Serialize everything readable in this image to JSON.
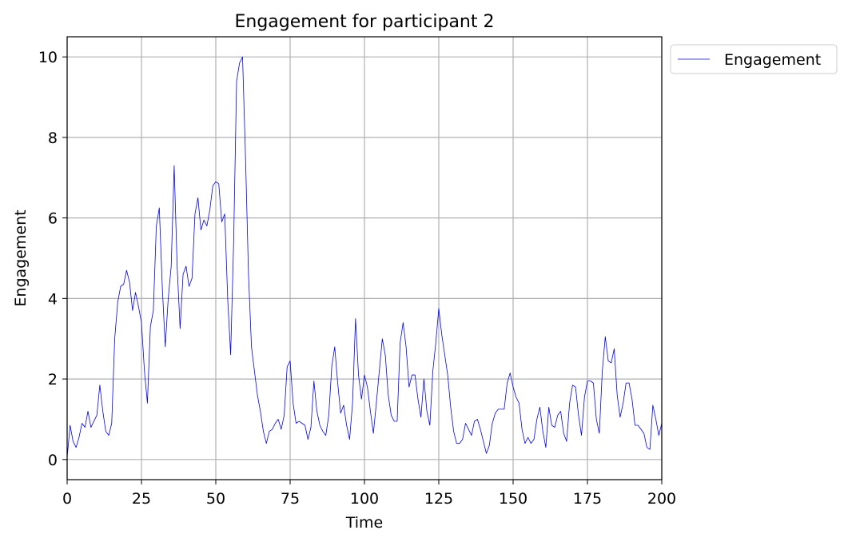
{
  "chart_data": {
    "type": "line",
    "title": "Engagement for participant 2",
    "xlabel": "Time",
    "ylabel": "Engagement",
    "xlim": [
      0,
      200
    ],
    "ylim": [
      -0.5,
      10.5
    ],
    "xticks": [
      0,
      25,
      50,
      75,
      100,
      125,
      150,
      175,
      200
    ],
    "yticks": [
      0,
      2,
      4,
      6,
      8,
      10
    ],
    "grid": true,
    "legend_position": "outside-top-right",
    "series": [
      {
        "name": "Engagement",
        "color": "#0000ff",
        "x": [
          0,
          1,
          2,
          3,
          4,
          5,
          6,
          7,
          8,
          9,
          10,
          11,
          12,
          13,
          14,
          15,
          16,
          17,
          18,
          19,
          20,
          21,
          22,
          23,
          24,
          25,
          26,
          27,
          28,
          29,
          30,
          31,
          32,
          33,
          34,
          35,
          36,
          37,
          38,
          39,
          40,
          41,
          42,
          43,
          44,
          45,
          46,
          47,
          48,
          49,
          50,
          51,
          52,
          53,
          54,
          55,
          56,
          57,
          58,
          59,
          60,
          61,
          62,
          63,
          64,
          65,
          66,
          67,
          68,
          69,
          70,
          71,
          72,
          73,
          74,
          75,
          76,
          77,
          78,
          79,
          80,
          81,
          82,
          83,
          84,
          85,
          86,
          87,
          88,
          89,
          90,
          91,
          92,
          93,
          94,
          95,
          96,
          97,
          98,
          99,
          100,
          101,
          102,
          103,
          104,
          105,
          106,
          107,
          108,
          109,
          110,
          111,
          112,
          113,
          114,
          115,
          116,
          117,
          118,
          119,
          120,
          121,
          122,
          123,
          124,
          125,
          126,
          127,
          128,
          129,
          130,
          131,
          132,
          133,
          134,
          135,
          136,
          137,
          138,
          139,
          140,
          141,
          142,
          143,
          144,
          145,
          146,
          147,
          148,
          149,
          150,
          151,
          152,
          153,
          154,
          155,
          156,
          157,
          158,
          159,
          160,
          161,
          162,
          163,
          164,
          165,
          166,
          167,
          168,
          169,
          170,
          171,
          172,
          173,
          174,
          175,
          176,
          177,
          178,
          179,
          180,
          181,
          182,
          183,
          184,
          185,
          186,
          187,
          188,
          189,
          190,
          191,
          192,
          193,
          194,
          195,
          196,
          197,
          198,
          199,
          200
        ],
        "y": [
          0.05,
          0.85,
          0.45,
          0.3,
          0.55,
          0.9,
          0.8,
          1.2,
          0.8,
          0.95,
          1.1,
          1.85,
          1.2,
          0.7,
          0.6,
          0.9,
          3.0,
          3.9,
          4.3,
          4.35,
          4.7,
          4.4,
          3.7,
          4.15,
          3.8,
          3.4,
          2.2,
          1.4,
          3.3,
          3.7,
          5.8,
          6.25,
          4.3,
          2.8,
          4.0,
          4.8,
          7.3,
          4.8,
          3.25,
          4.6,
          4.8,
          4.3,
          4.5,
          6.1,
          6.5,
          5.7,
          5.95,
          5.8,
          6.2,
          6.8,
          6.9,
          6.85,
          5.9,
          6.1,
          4.0,
          2.6,
          5.4,
          9.4,
          9.85,
          10.0,
          7.5,
          4.6,
          2.8,
          2.2,
          1.6,
          1.2,
          0.7,
          0.4,
          0.7,
          0.75,
          0.9,
          1.0,
          0.75,
          1.1,
          2.3,
          2.45,
          1.4,
          0.9,
          0.95,
          0.9,
          0.85,
          0.5,
          0.8,
          1.95,
          1.2,
          0.85,
          0.7,
          0.6,
          1.1,
          2.3,
          2.8,
          1.9,
          1.15,
          1.35,
          0.85,
          0.5,
          1.4,
          3.5,
          2.1,
          1.5,
          2.1,
          1.8,
          1.2,
          0.65,
          1.4,
          2.2,
          3.0,
          2.6,
          1.6,
          1.1,
          0.95,
          0.95,
          2.9,
          3.4,
          2.8,
          1.8,
          2.1,
          2.1,
          1.5,
          1.05,
          2.0,
          1.2,
          0.85,
          2.2,
          2.9,
          3.75,
          3.1,
          2.6,
          2.1,
          1.3,
          0.7,
          0.4,
          0.4,
          0.5,
          0.9,
          0.75,
          0.6,
          0.95,
          1.0,
          0.75,
          0.45,
          0.15,
          0.35,
          0.9,
          1.15,
          1.25,
          1.25,
          1.25,
          1.9,
          2.15,
          1.8,
          1.55,
          1.4,
          0.75,
          0.4,
          0.55,
          0.4,
          0.5,
          1.0,
          1.3,
          0.7,
          0.3,
          1.3,
          0.85,
          0.8,
          1.1,
          1.2,
          0.65,
          0.45,
          1.4,
          1.85,
          1.8,
          1.1,
          0.6,
          1.55,
          1.95,
          1.95,
          1.9,
          1.0,
          0.65,
          2.2,
          3.05,
          2.45,
          2.4,
          2.75,
          1.6,
          1.05,
          1.4,
          1.9,
          1.9,
          1.5,
          0.85,
          0.85,
          0.75,
          0.65,
          0.3,
          0.25,
          1.35,
          1.0,
          0.6,
          0.9
        ]
      }
    ]
  }
}
